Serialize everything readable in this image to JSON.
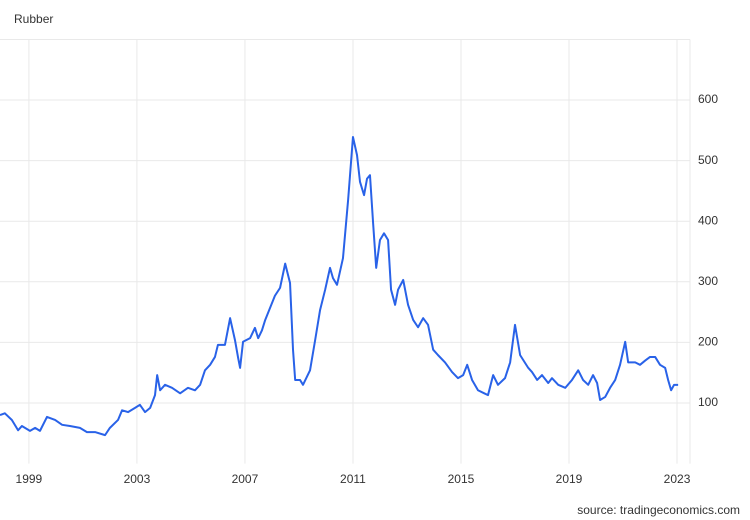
{
  "chart_data": {
    "type": "line",
    "title": "Rubber",
    "source": "source: tradingeconomics.com",
    "x": [
      1997.93,
      1998.11,
      1998.37,
      1998.6,
      1998.74,
      1999.04,
      1999.23,
      1999.41,
      1999.67,
      1999.97,
      2000.23,
      2000.52,
      2000.89,
      2001.15,
      2001.45,
      2001.82,
      2002.0,
      2002.3,
      2002.45,
      2002.67,
      2002.93,
      2003.11,
      2003.3,
      2003.49,
      2003.67,
      2003.75,
      2003.86,
      2004.04,
      2004.3,
      2004.6,
      2004.89,
      2005.15,
      2005.34,
      2005.52,
      2005.71,
      2005.89,
      2006.0,
      2006.26,
      2006.45,
      2006.63,
      2006.75,
      2006.82,
      2006.93,
      2007.19,
      2007.37,
      2007.49,
      2007.63,
      2007.75,
      2007.93,
      2008.11,
      2008.3,
      2008.49,
      2008.67,
      2008.78,
      2008.86,
      2009.04,
      2009.15,
      2009.41,
      2009.6,
      2009.78,
      2009.97,
      2010.15,
      2010.26,
      2010.41,
      2010.63,
      2010.82,
      2011.0,
      2011.15,
      2011.26,
      2011.41,
      2011.52,
      2011.63,
      2011.75,
      2011.86,
      2012.0,
      2012.15,
      2012.3,
      2012.41,
      2012.56,
      2012.67,
      2012.86,
      2013.04,
      2013.23,
      2013.41,
      2013.6,
      2013.78,
      2013.97,
      2014.15,
      2014.41,
      2014.67,
      2014.89,
      2015.08,
      2015.23,
      2015.41,
      2015.63,
      2015.86,
      2016.0,
      2016.19,
      2016.37,
      2016.63,
      2016.82,
      2017.0,
      2017.19,
      2017.49,
      2017.63,
      2017.82,
      2018.0,
      2018.23,
      2018.37,
      2018.6,
      2018.86,
      2019.11,
      2019.34,
      2019.52,
      2019.71,
      2019.89,
      2020.04,
      2020.15,
      2020.34,
      2020.52,
      2020.71,
      2020.89,
      2021.08,
      2021.19,
      2021.45,
      2021.63,
      2021.82,
      2022.0,
      2022.19,
      2022.37,
      2022.56,
      2022.67,
      2022.78,
      2022.89,
      2023.04
    ],
    "series": [
      {
        "name": "Rubber",
        "color": "#2962e8",
        "values": [
          80,
          83,
          72,
          55,
          62,
          54,
          59,
          54,
          77,
          72,
          64,
          62,
          59,
          52,
          52,
          47,
          59,
          72,
          88,
          85,
          92,
          97,
          85,
          92,
          113,
          146,
          121,
          130,
          125,
          116,
          125,
          121,
          130,
          154,
          163,
          176,
          196,
          196,
          240,
          204,
          174,
          158,
          201,
          207,
          224,
          207,
          220,
          237,
          257,
          277,
          290,
          330,
          298,
          188,
          138,
          138,
          130,
          154,
          204,
          253,
          287,
          323,
          306,
          295,
          339,
          435,
          539,
          509,
          465,
          443,
          470,
          476,
          394,
          323,
          369,
          380,
          369,
          287,
          262,
          287,
          303,
          262,
          237,
          225,
          240,
          229,
          188,
          179,
          167,
          151,
          141,
          146,
          163,
          138,
          121,
          116,
          113,
          146,
          130,
          141,
          167,
          229,
          179,
          158,
          151,
          138,
          146,
          133,
          141,
          130,
          125,
          138,
          154,
          138,
          130,
          146,
          133,
          105,
          110,
          125,
          138,
          163,
          201,
          167,
          167,
          163,
          170,
          176,
          176,
          163,
          158,
          138,
          121,
          130,
          130
        ]
      }
    ],
    "xlim": [
      1997.93,
      2023.48
    ],
    "xticks": [
      1999,
      2003,
      2007,
      2011,
      2015,
      2019,
      2023
    ],
    "ylim": [
      0,
      700
    ],
    "yticks": [
      100,
      200,
      300,
      400,
      500,
      600
    ],
    "grid": true
  }
}
